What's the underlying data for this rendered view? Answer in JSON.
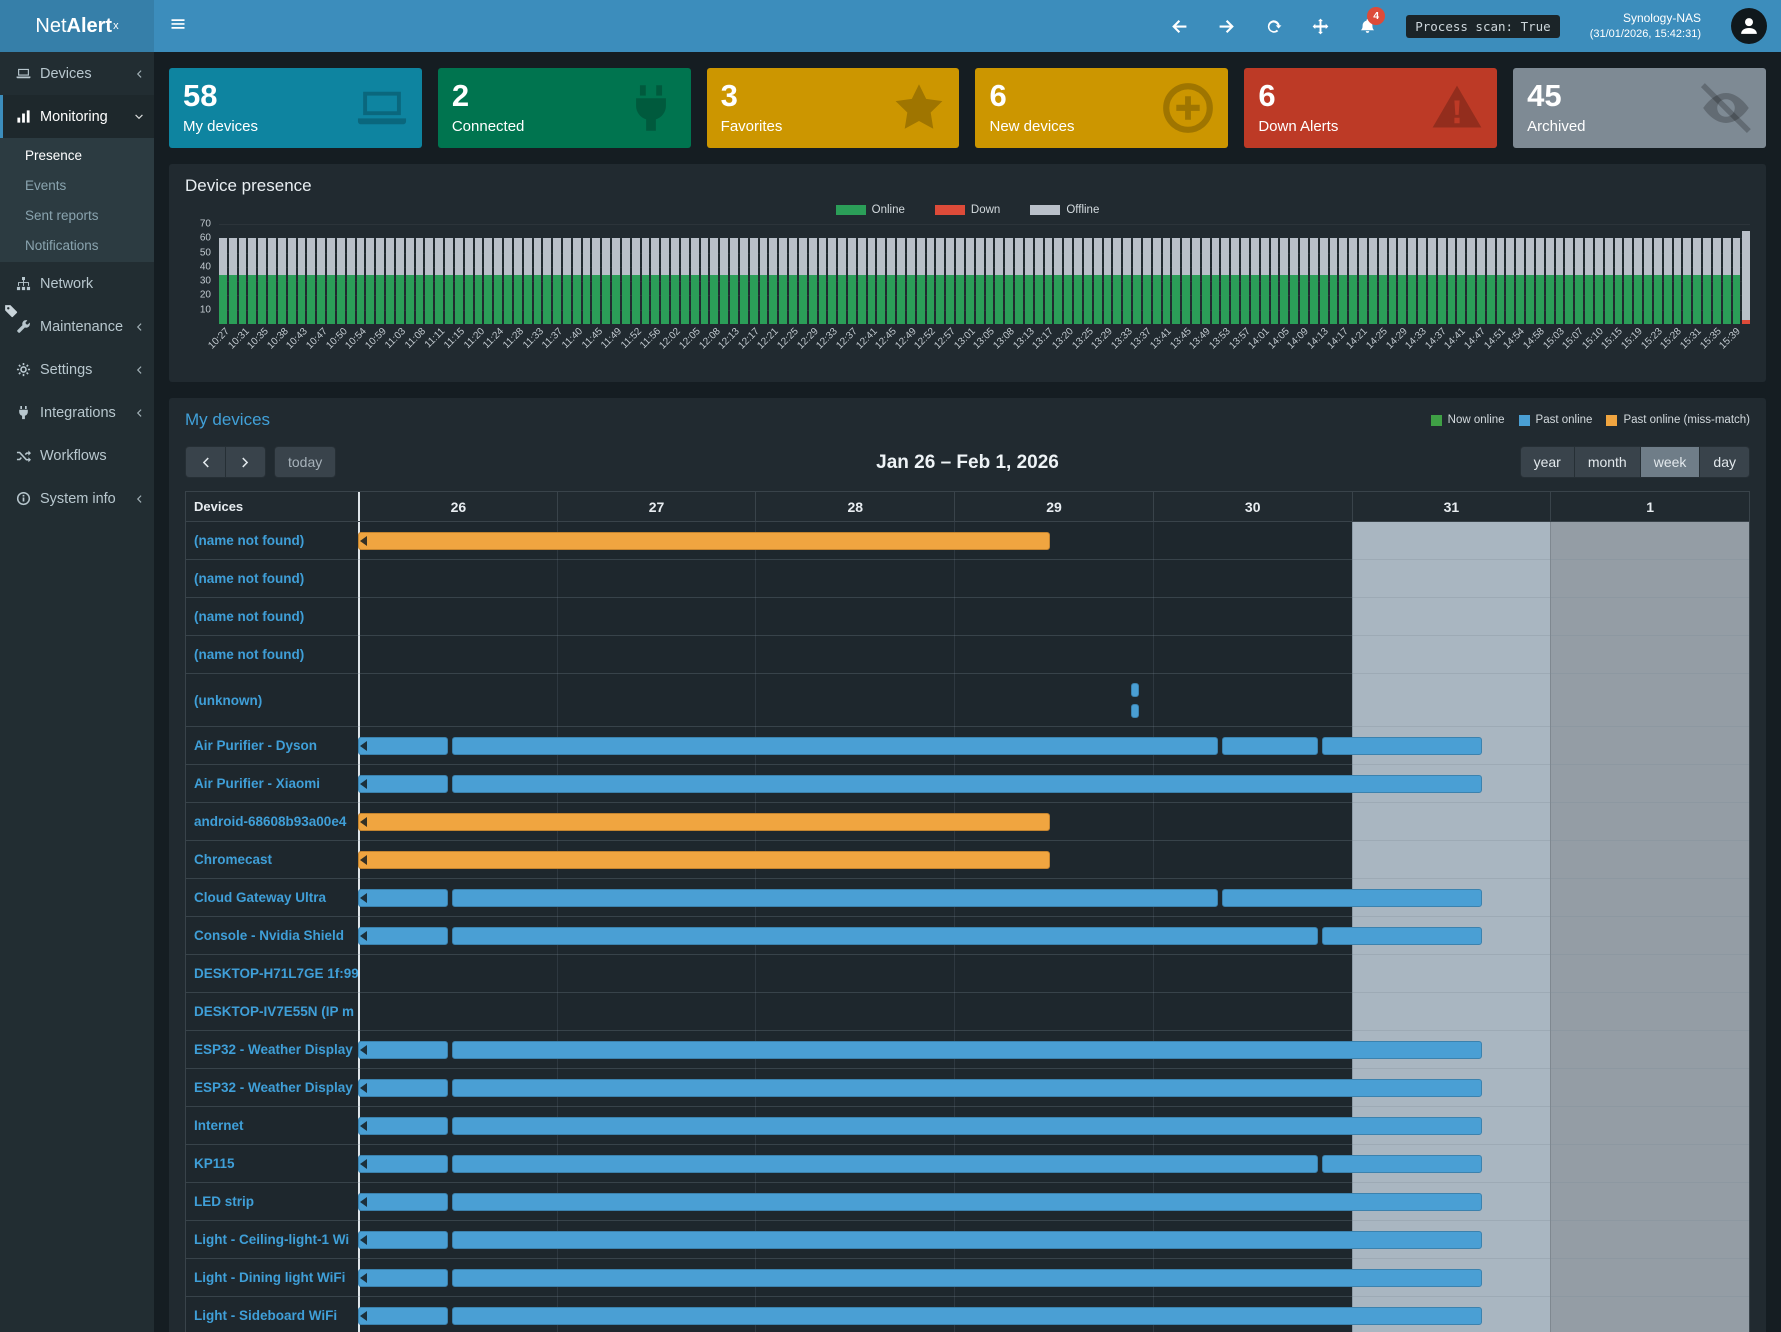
{
  "topbar": {
    "logo_net": "Net",
    "logo_alert": "Alert",
    "logo_sup": "x",
    "notification_count": "4",
    "process_scan": "Process scan: True",
    "host": "Synology-NAS",
    "timestamp": "(31/01/2026, 15:42:31)"
  },
  "sidebar": {
    "items": [
      {
        "label": "Devices",
        "icon": "laptop",
        "chevron": "left"
      },
      {
        "label": "Monitoring",
        "icon": "chart",
        "chevron": "down",
        "active": true,
        "children": [
          {
            "label": "Presence",
            "active": true
          },
          {
            "label": "Events"
          },
          {
            "label": "Sent reports"
          },
          {
            "label": "Notifications"
          }
        ]
      },
      {
        "label": "Network",
        "icon": "network"
      },
      {
        "label": "Maintenance",
        "icon": "wrench",
        "chevron": "left"
      },
      {
        "label": "Settings",
        "icon": "gear",
        "chevron": "left"
      },
      {
        "label": "Integrations",
        "icon": "plug",
        "chevron": "left"
      },
      {
        "label": "Workflows",
        "icon": "shuffle"
      },
      {
        "label": "System info",
        "icon": "info",
        "chevron": "left"
      }
    ]
  },
  "cards": [
    {
      "value": "58",
      "label": "My devices",
      "color": "#0e84a0",
      "icon": "laptop"
    },
    {
      "value": "2",
      "label": "Connected",
      "color": "#00744f",
      "icon": "plug"
    },
    {
      "value": "3",
      "label": "Favorites",
      "color": "#cc9600",
      "icon": "star"
    },
    {
      "value": "6",
      "label": "New devices",
      "color": "#cc9600",
      "icon": "plus-circle"
    },
    {
      "value": "6",
      "label": "Down Alerts",
      "color": "#bd3a26",
      "icon": "warning"
    },
    {
      "value": "45",
      "label": "Archived",
      "color": "#7e8a94",
      "icon": "eye-slash"
    }
  ],
  "presence": {
    "title": "Device presence",
    "legend": [
      {
        "label": "Online",
        "color": "#2b9e58"
      },
      {
        "label": "Down",
        "color": "#dd4b39"
      },
      {
        "label": "Offline",
        "color": "#b9c0c9"
      }
    ],
    "chart_data": {
      "type": "bar",
      "stacked": true,
      "ylim": [
        0,
        70
      ],
      "yticks": [
        70,
        60,
        50,
        40,
        30,
        20,
        10
      ],
      "bars_per_label": 2,
      "series_colors": {
        "online": "#2b9e58",
        "down": "#dd4b39",
        "offline": "#b9c0c9"
      },
      "default_bar": {
        "online": 34,
        "down": 0,
        "offline": 26
      },
      "last_bar": {
        "online": 0,
        "down": 3,
        "offline": 62
      },
      "time_labels": [
        "10:27",
        "10:31",
        "10:35",
        "10:38",
        "10:43",
        "10:47",
        "10:50",
        "10:54",
        "10:59",
        "11:03",
        "11:08",
        "11:11",
        "11:15",
        "11:20",
        "11:24",
        "11:28",
        "11:33",
        "11:37",
        "11:40",
        "11:45",
        "11:49",
        "11:52",
        "11:56",
        "12:02",
        "12:05",
        "12:08",
        "12:13",
        "12:17",
        "12:21",
        "12:25",
        "12:29",
        "12:33",
        "12:37",
        "12:41",
        "12:45",
        "12:49",
        "12:52",
        "12:57",
        "13:01",
        "13:05",
        "13:08",
        "13:13",
        "13:17",
        "13:20",
        "13:25",
        "13:29",
        "13:33",
        "13:37",
        "13:41",
        "13:45",
        "13:49",
        "13:53",
        "13:57",
        "14:01",
        "14:05",
        "14:09",
        "14:13",
        "14:17",
        "14:21",
        "14:25",
        "14:29",
        "14:33",
        "14:37",
        "14:41",
        "14:47",
        "14:51",
        "14:54",
        "14:58",
        "15:03",
        "15:07",
        "15:10",
        "15:15",
        "15:19",
        "15:23",
        "15:28",
        "15:31",
        "15:35",
        "15:39"
      ]
    }
  },
  "calendar": {
    "panel_title": "My devices",
    "legend": [
      {
        "label": "Now online",
        "color": "#3fa045"
      },
      {
        "label": "Past online",
        "color": "#4a9fd4"
      },
      {
        "label": "Past online (miss-match)",
        "color": "#f0a540"
      }
    ],
    "toolbar": {
      "today_label": "today",
      "title": "Jan 26 – Feb 1, 2026",
      "views": [
        "year",
        "month",
        "week",
        "day"
      ],
      "active_view": "week"
    },
    "header": {
      "devices_label": "Devices",
      "days": [
        "26",
        "27",
        "28",
        "29",
        "30",
        "31",
        "1"
      ]
    },
    "today_col": 5,
    "next_month_col": 6,
    "days_in_view": 7,
    "rows": [
      {
        "name": "(name not found)",
        "bars": [
          {
            "c": "orange",
            "s": 0,
            "e": 3.48,
            "n": true
          }
        ]
      },
      {
        "name": "(name not found)",
        "bars": []
      },
      {
        "name": "(name not found)",
        "bars": []
      },
      {
        "name": "(name not found)",
        "bars": []
      },
      {
        "name": "(unknown)",
        "tall": true,
        "bars": [
          {
            "c": "blue",
            "s": 3.89,
            "e": 3.93,
            "lane": 0
          },
          {
            "c": "blue",
            "s": 3.89,
            "e": 3.93,
            "lane": 1
          }
        ]
      },
      {
        "name": "Air Purifier - Dyson",
        "bars": [
          {
            "c": "blue",
            "s": 0,
            "e": 0.455,
            "n": true
          },
          {
            "c": "blue",
            "s": 0.475,
            "e": 4.33
          },
          {
            "c": "blue",
            "s": 4.35,
            "e": 4.83
          },
          {
            "c": "blue",
            "s": 4.85,
            "e": 5.654
          }
        ]
      },
      {
        "name": "Air Purifier - Xiaomi",
        "bars": [
          {
            "c": "blue",
            "s": 0,
            "e": 0.455,
            "n": true
          },
          {
            "c": "blue",
            "s": 0.475,
            "e": 5.654
          }
        ]
      },
      {
        "name": "android-68608b93a00e4",
        "bars": [
          {
            "c": "orange",
            "s": 0,
            "e": 3.48,
            "n": true
          }
        ]
      },
      {
        "name": "Chromecast",
        "bars": [
          {
            "c": "orange",
            "s": 0,
            "e": 3.48,
            "n": true
          }
        ]
      },
      {
        "name": "Cloud Gateway Ultra",
        "bars": [
          {
            "c": "blue",
            "s": 0,
            "e": 0.455,
            "n": true
          },
          {
            "c": "blue",
            "s": 0.475,
            "e": 4.33
          },
          {
            "c": "blue",
            "s": 4.35,
            "e": 5.654
          }
        ]
      },
      {
        "name": "Console - Nvidia Shield",
        "bars": [
          {
            "c": "blue",
            "s": 0,
            "e": 0.455,
            "n": true
          },
          {
            "c": "blue",
            "s": 0.475,
            "e": 4.83
          },
          {
            "c": "blue",
            "s": 4.85,
            "e": 5.654
          }
        ]
      },
      {
        "name": "DESKTOP-H71L7GE 1f:99",
        "bars": []
      },
      {
        "name": "DESKTOP-IV7E55N (IP m",
        "bars": []
      },
      {
        "name": "ESP32 - Weather Display",
        "bars": [
          {
            "c": "blue",
            "s": 0,
            "e": 0.455,
            "n": true
          },
          {
            "c": "blue",
            "s": 0.475,
            "e": 5.654
          }
        ]
      },
      {
        "name": "ESP32 - Weather Display",
        "bars": [
          {
            "c": "blue",
            "s": 0,
            "e": 0.455,
            "n": true
          },
          {
            "c": "blue",
            "s": 0.475,
            "e": 5.654
          }
        ]
      },
      {
        "name": "Internet",
        "bars": [
          {
            "c": "blue",
            "s": 0,
            "e": 0.455,
            "n": true
          },
          {
            "c": "blue",
            "s": 0.475,
            "e": 5.654
          }
        ]
      },
      {
        "name": "KP115",
        "bars": [
          {
            "c": "blue",
            "s": 0,
            "e": 0.455,
            "n": true
          },
          {
            "c": "blue",
            "s": 0.475,
            "e": 4.83
          },
          {
            "c": "blue",
            "s": 4.85,
            "e": 5.654
          }
        ]
      },
      {
        "name": "LED strip",
        "bars": [
          {
            "c": "blue",
            "s": 0,
            "e": 0.455,
            "n": true
          },
          {
            "c": "blue",
            "s": 0.475,
            "e": 5.654
          }
        ]
      },
      {
        "name": "Light - Ceiling-light-1 Wi",
        "bars": [
          {
            "c": "blue",
            "s": 0,
            "e": 0.455,
            "n": true
          },
          {
            "c": "blue",
            "s": 0.475,
            "e": 5.654
          }
        ]
      },
      {
        "name": "Light - Dining light WiFi",
        "bars": [
          {
            "c": "blue",
            "s": 0,
            "e": 0.455,
            "n": true
          },
          {
            "c": "blue",
            "s": 0.475,
            "e": 5.654
          }
        ]
      },
      {
        "name": "Light - Sideboard WiFi",
        "bars": [
          {
            "c": "blue",
            "s": 0,
            "e": 0.455,
            "n": true
          },
          {
            "c": "blue",
            "s": 0.475,
            "e": 5.654
          }
        ]
      }
    ]
  }
}
